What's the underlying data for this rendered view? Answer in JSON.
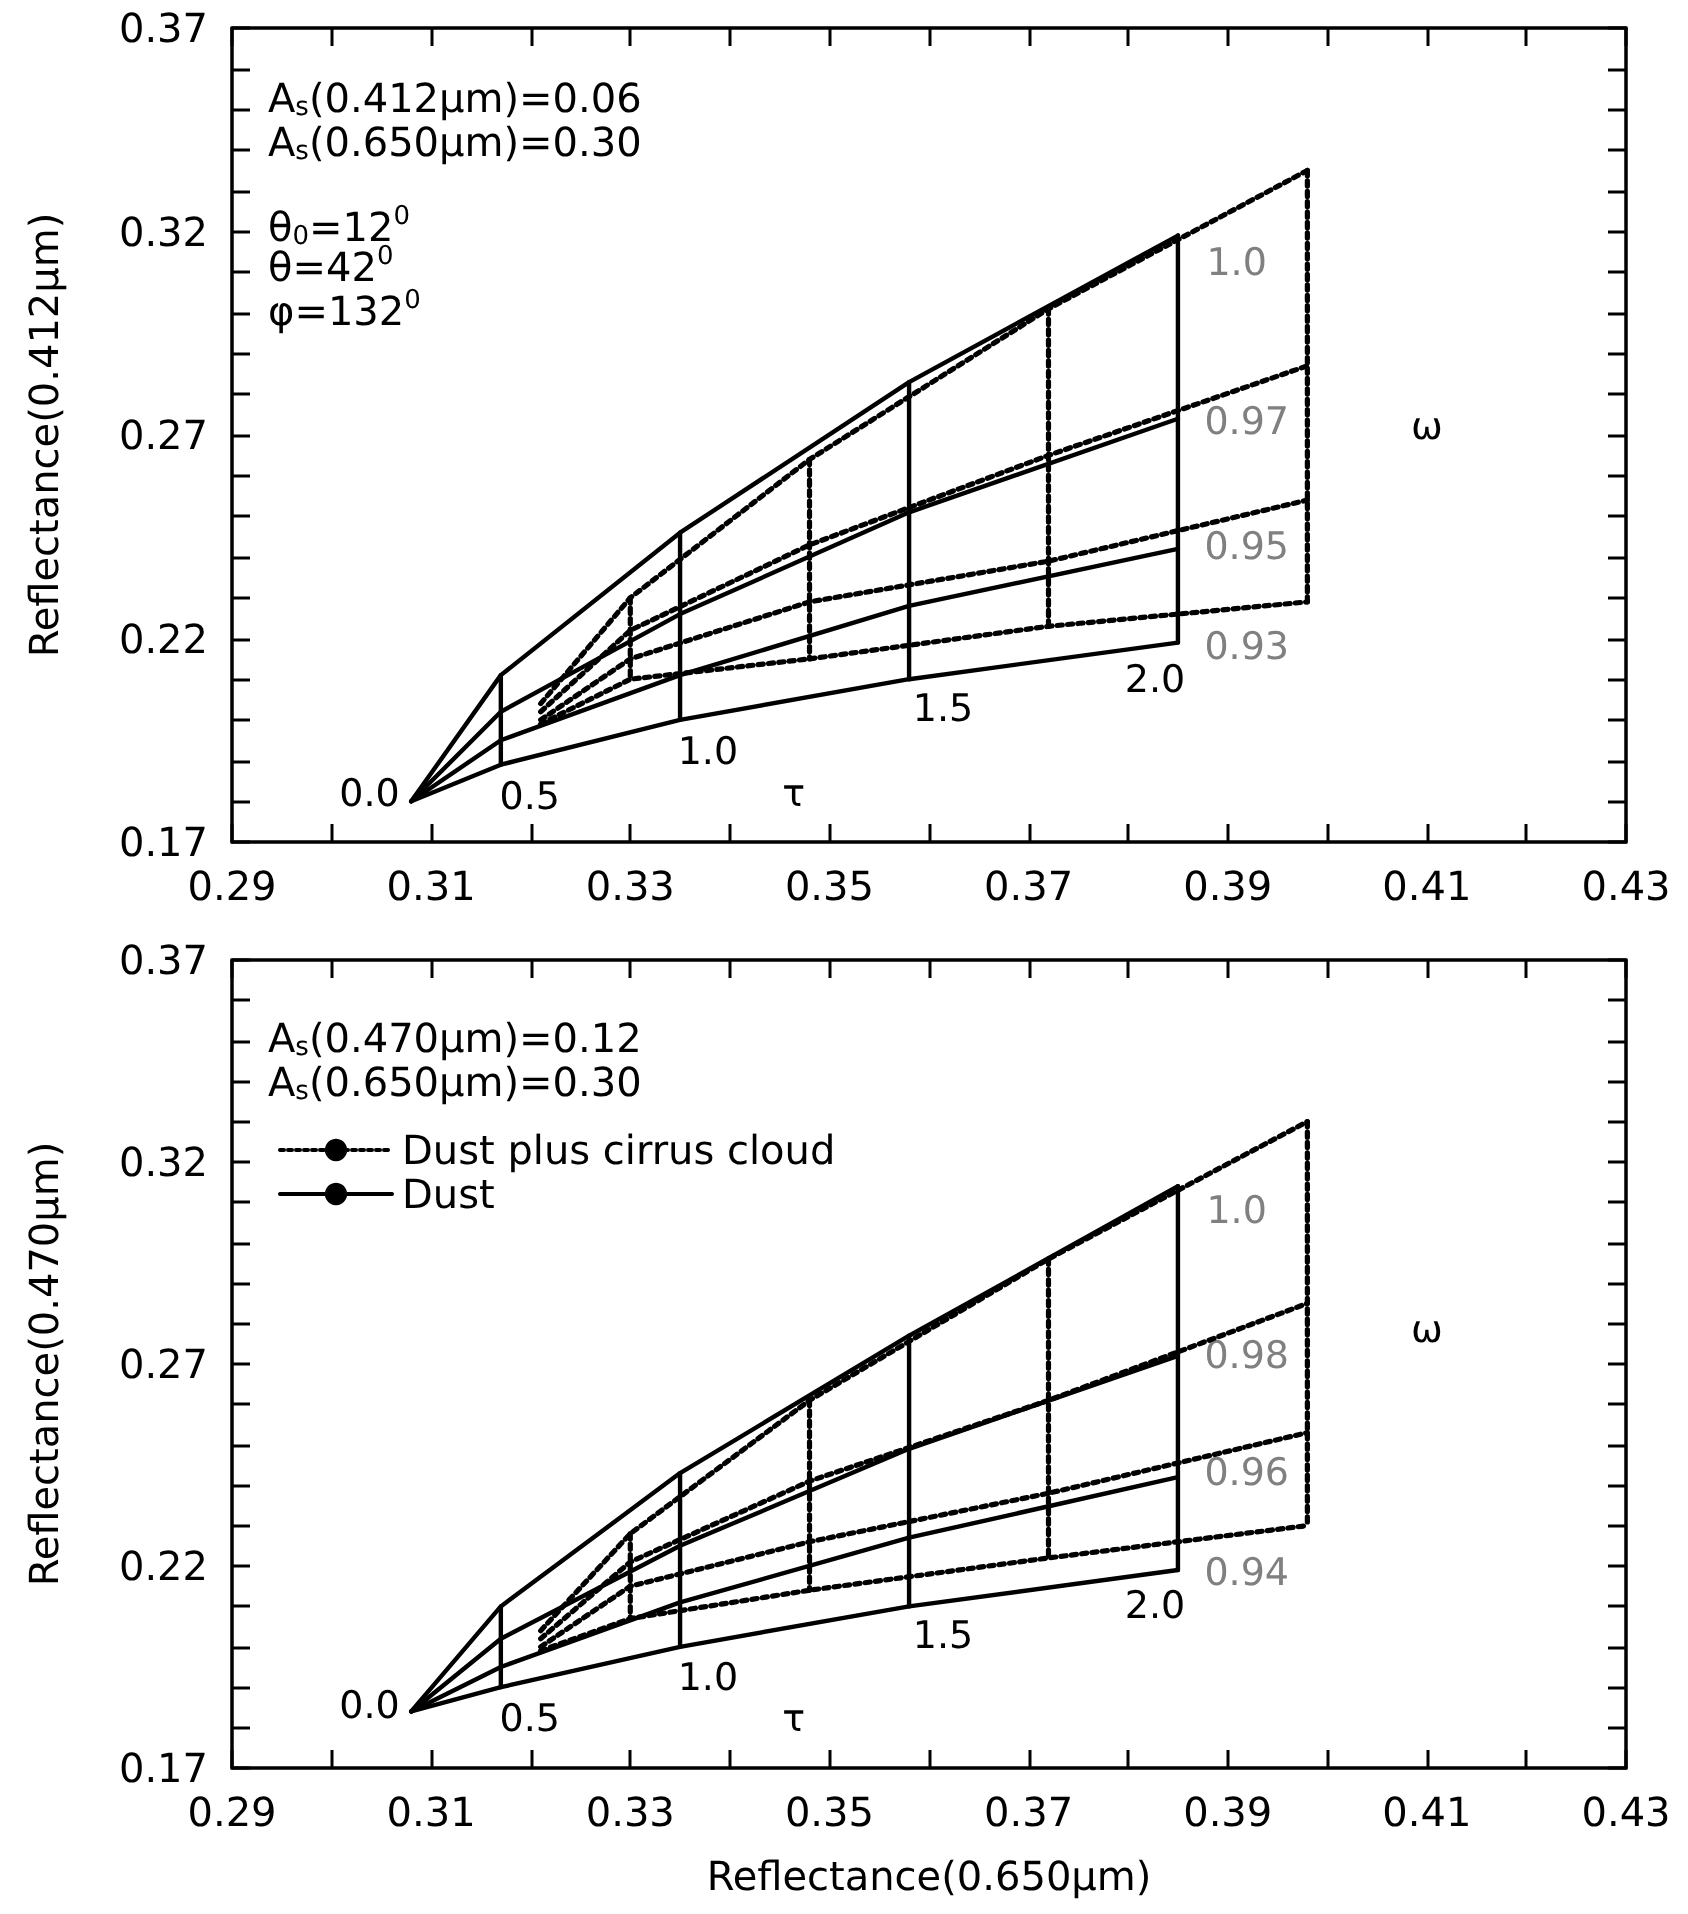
{
  "chart_data": [
    {
      "type": "line",
      "ylabel": "Reflectance(0.412μm)",
      "marker": "none",
      "grid": false,
      "xlim": [
        0.29,
        0.43
      ],
      "ylim": [
        0.17,
        0.37
      ],
      "xticks": [
        0.29,
        {
          "value": 0.3,
          "label": null
        },
        0.31,
        {
          "value": 0.32,
          "label": null
        },
        0.33,
        {
          "value": 0.34,
          "label": null
        },
        0.35,
        {
          "value": 0.36,
          "label": null
        },
        0.37,
        {
          "value": 0.38,
          "label": null
        },
        0.39,
        {
          "value": 0.4,
          "label": null
        },
        0.41,
        {
          "value": 0.42,
          "label": null
        },
        0.43
      ],
      "yticks": [
        0.17,
        {
          "value": 0.18,
          "label": null
        },
        {
          "value": 0.19,
          "label": null
        },
        {
          "value": 0.2,
          "label": null
        },
        {
          "value": 0.21,
          "label": null
        },
        0.22,
        {
          "value": 0.23,
          "label": null
        },
        {
          "value": 0.24,
          "label": null
        },
        {
          "value": 0.25,
          "label": null
        },
        {
          "value": 0.26,
          "label": null
        },
        0.27,
        {
          "value": 0.28,
          "label": null
        },
        {
          "value": 0.29,
          "label": null
        },
        {
          "value": 0.3,
          "label": null
        },
        {
          "value": 0.31,
          "label": null
        },
        0.32,
        {
          "value": 0.33,
          "label": null
        },
        {
          "value": 0.34,
          "label": null
        },
        {
          "value": 0.35,
          "label": null
        },
        {
          "value": 0.36,
          "label": null
        },
        0.37
      ],
      "annotations": [
        "A$_{s}$(0.412μm)=0.06",
        "A$_{s}$(0.650μm)=0.30",
        "θ$_{0}$=12$^{0}$",
        "θ=42$^{0}$",
        "φ=132$^{0}$",
        "0.0",
        "0.5",
        "1.0",
        "τ",
        "1.5",
        "2.0",
        "1.0",
        "0.97",
        "0.95",
        "0.93",
        "ω"
      ],
      "series": [
        {
          "color": "#000000",
          "line_style": "dotted",
          "x": [
            0.321,
            0.33,
            0.348,
            0.372,
            0.398
          ],
          "values": [
            0.204,
            0.23,
            0.264,
            0.301,
            0.335
          ]
        },
        {
          "color": "#000000",
          "line_style": "dotted",
          "x": [
            0.321,
            0.33,
            0.348,
            0.372,
            0.398
          ],
          "values": [
            0.202,
            0.222,
            0.243,
            0.265,
            0.287
          ]
        },
        {
          "color": "#000000",
          "line_style": "dotted",
          "x": [
            0.321,
            0.33,
            0.348,
            0.372,
            0.398
          ],
          "values": [
            0.2,
            0.215,
            0.229,
            0.239,
            0.254
          ]
        },
        {
          "color": "#000000",
          "line_style": "dotted",
          "x": [
            0.321,
            0.33,
            0.348,
            0.372,
            0.398
          ],
          "values": [
            0.199,
            0.21,
            0.215,
            0.223,
            0.229
          ]
        },
        {
          "color": "#000000",
          "line_style": "dotted",
          "x": [
            0.33,
            0.33,
            0.33,
            0.33
          ],
          "values": [
            0.23,
            0.222,
            0.215,
            0.21
          ]
        },
        {
          "color": "#000000",
          "line_style": "dotted",
          "x": [
            0.348,
            0.348,
            0.348,
            0.348
          ],
          "values": [
            0.264,
            0.243,
            0.229,
            0.215
          ]
        },
        {
          "color": "#000000",
          "line_style": "dotted",
          "x": [
            0.372,
            0.372,
            0.372,
            0.372
          ],
          "values": [
            0.301,
            0.265,
            0.239,
            0.223
          ]
        },
        {
          "color": "#000000",
          "line_style": "dotted",
          "x": [
            0.398,
            0.398,
            0.398,
            0.398
          ],
          "values": [
            0.335,
            0.287,
            0.254,
            0.229
          ]
        },
        {
          "color": "#000000",
          "line_style": "solid",
          "x": [
            0.308,
            0.317,
            0.335,
            0.358,
            0.385
          ],
          "values": [
            0.18,
            0.211,
            0.246,
            0.283,
            0.319
          ]
        },
        {
          "color": "#000000",
          "line_style": "solid",
          "x": [
            0.308,
            0.317,
            0.335,
            0.358,
            0.385
          ],
          "values": [
            0.18,
            0.202,
            0.226,
            0.251,
            0.274
          ]
        },
        {
          "color": "#000000",
          "line_style": "solid",
          "x": [
            0.308,
            0.317,
            0.335,
            0.358,
            0.385
          ],
          "values": [
            0.18,
            0.195,
            0.211,
            0.228,
            0.242
          ]
        },
        {
          "color": "#000000",
          "line_style": "solid",
          "x": [
            0.308,
            0.317,
            0.335,
            0.358,
            0.385
          ],
          "values": [
            0.18,
            0.189,
            0.2,
            0.21,
            0.219
          ]
        },
        {
          "color": "#000000",
          "line_style": "solid",
          "x": [
            0.317,
            0.317,
            0.317,
            0.317
          ],
          "values": [
            0.211,
            0.202,
            0.195,
            0.189
          ]
        },
        {
          "color": "#000000",
          "line_style": "solid",
          "x": [
            0.335,
            0.335,
            0.335,
            0.335
          ],
          "values": [
            0.246,
            0.226,
            0.211,
            0.2
          ]
        },
        {
          "color": "#000000",
          "line_style": "solid",
          "x": [
            0.358,
            0.358,
            0.358,
            0.358
          ],
          "values": [
            0.283,
            0.251,
            0.228,
            0.21
          ]
        },
        {
          "color": "#000000",
          "line_style": "solid",
          "x": [
            0.385,
            0.385,
            0.385,
            0.385
          ],
          "values": [
            0.319,
            0.274,
            0.242,
            0.219
          ]
        }
      ]
    },
    {
      "type": "line",
      "xlabel": "Reflectance(0.650μm)",
      "ylabel": "Reflectance(0.470μm)",
      "marker": "none",
      "grid": false,
      "legend": "top left",
      "xlim": [
        0.29,
        0.43
      ],
      "ylim": [
        0.17,
        0.37
      ],
      "xticks": [
        0.29,
        {
          "value": 0.3,
          "label": null
        },
        0.31,
        {
          "value": 0.32,
          "label": null
        },
        0.33,
        {
          "value": 0.34,
          "label": null
        },
        0.35,
        {
          "value": 0.36,
          "label": null
        },
        0.37,
        {
          "value": 0.38,
          "label": null
        },
        0.39,
        {
          "value": 0.4,
          "label": null
        },
        0.41,
        {
          "value": 0.42,
          "label": null
        },
        0.43
      ],
      "yticks": [
        0.17,
        {
          "value": 0.18,
          "label": null
        },
        {
          "value": 0.19,
          "label": null
        },
        {
          "value": 0.2,
          "label": null
        },
        {
          "value": 0.21,
          "label": null
        },
        0.22,
        {
          "value": 0.23,
          "label": null
        },
        {
          "value": 0.24,
          "label": null
        },
        {
          "value": 0.25,
          "label": null
        },
        {
          "value": 0.26,
          "label": null
        },
        0.27,
        {
          "value": 0.28,
          "label": null
        },
        {
          "value": 0.29,
          "label": null
        },
        {
          "value": 0.3,
          "label": null
        },
        {
          "value": 0.31,
          "label": null
        },
        0.32,
        {
          "value": 0.33,
          "label": null
        },
        {
          "value": 0.34,
          "label": null
        },
        {
          "value": 0.35,
          "label": null
        },
        {
          "value": 0.36,
          "label": null
        },
        0.37
      ],
      "annotations": [
        "A$_{s}$(0.470μm)=0.12",
        "A$_{s}$(0.650μm)=0.30",
        "0.0",
        "0.5",
        "1.0",
        "τ",
        "1.5",
        "2.0",
        "1.0",
        "0.98",
        "0.96",
        "0.94",
        "ω"
      ],
      "series": [
        {
          "name": "Dust plus cirrus cloud",
          "color": "#000000",
          "line_style": "dotted",
          "x": [
            0.321,
            0.33,
            0.348,
            0.372,
            0.398
          ],
          "values": [
            0.204,
            0.228,
            0.261,
            0.296,
            0.33
          ]
        },
        {
          "color": "#000000",
          "line_style": "dotted",
          "x": [
            0.321,
            0.33,
            0.348,
            0.372,
            0.398
          ],
          "values": [
            0.202,
            0.221,
            0.241,
            0.261,
            0.285
          ]
        },
        {
          "color": "#000000",
          "line_style": "dotted",
          "x": [
            0.321,
            0.33,
            0.348,
            0.372,
            0.398
          ],
          "values": [
            0.2,
            0.215,
            0.226,
            0.238,
            0.253
          ]
        },
        {
          "color": "#000000",
          "line_style": "dotted",
          "x": [
            0.321,
            0.33,
            0.348,
            0.372,
            0.398
          ],
          "values": [
            0.199,
            0.207,
            0.214,
            0.222,
            0.23
          ]
        },
        {
          "color": "#000000",
          "line_style": "dotted",
          "x": [
            0.33,
            0.33,
            0.33,
            0.33
          ],
          "values": [
            0.228,
            0.221,
            0.215,
            0.207
          ]
        },
        {
          "color": "#000000",
          "line_style": "dotted",
          "x": [
            0.348,
            0.348,
            0.348,
            0.348
          ],
          "values": [
            0.261,
            0.241,
            0.226,
            0.214
          ]
        },
        {
          "color": "#000000",
          "line_style": "dotted",
          "x": [
            0.372,
            0.372,
            0.372,
            0.372
          ],
          "values": [
            0.296,
            0.261,
            0.238,
            0.222
          ]
        },
        {
          "color": "#000000",
          "line_style": "dotted",
          "x": [
            0.398,
            0.398,
            0.398,
            0.398
          ],
          "values": [
            0.33,
            0.285,
            0.253,
            0.23
          ]
        },
        {
          "name": "Dust",
          "color": "#000000",
          "line_style": "solid",
          "x": [
            0.308,
            0.317,
            0.335,
            0.358,
            0.385
          ],
          "values": [
            0.184,
            0.21,
            0.243,
            0.277,
            0.314
          ]
        },
        {
          "color": "#000000",
          "line_style": "solid",
          "x": [
            0.308,
            0.317,
            0.335,
            0.358,
            0.385
          ],
          "values": [
            0.184,
            0.202,
            0.225,
            0.249,
            0.272
          ]
        },
        {
          "color": "#000000",
          "line_style": "solid",
          "x": [
            0.308,
            0.317,
            0.335,
            0.358,
            0.385
          ],
          "values": [
            0.184,
            0.195,
            0.211,
            0.227,
            0.242
          ]
        },
        {
          "color": "#000000",
          "line_style": "solid",
          "x": [
            0.308,
            0.317,
            0.335,
            0.358,
            0.385
          ],
          "values": [
            0.184,
            0.19,
            0.2,
            0.21,
            0.219
          ]
        },
        {
          "color": "#000000",
          "line_style": "solid",
          "x": [
            0.317,
            0.317,
            0.317,
            0.317
          ],
          "values": [
            0.21,
            0.202,
            0.195,
            0.19
          ]
        },
        {
          "color": "#000000",
          "line_style": "solid",
          "x": [
            0.335,
            0.335,
            0.335,
            0.335
          ],
          "values": [
            0.243,
            0.225,
            0.211,
            0.2
          ]
        },
        {
          "color": "#000000",
          "line_style": "solid",
          "x": [
            0.358,
            0.358,
            0.358,
            0.358
          ],
          "values": [
            0.277,
            0.249,
            0.227,
            0.21
          ]
        },
        {
          "color": "#000000",
          "line_style": "solid",
          "x": [
            0.385,
            0.385,
            0.385,
            0.385
          ],
          "values": [
            0.314,
            0.272,
            0.242,
            0.219
          ]
        }
      ]
    }
  ]
}
